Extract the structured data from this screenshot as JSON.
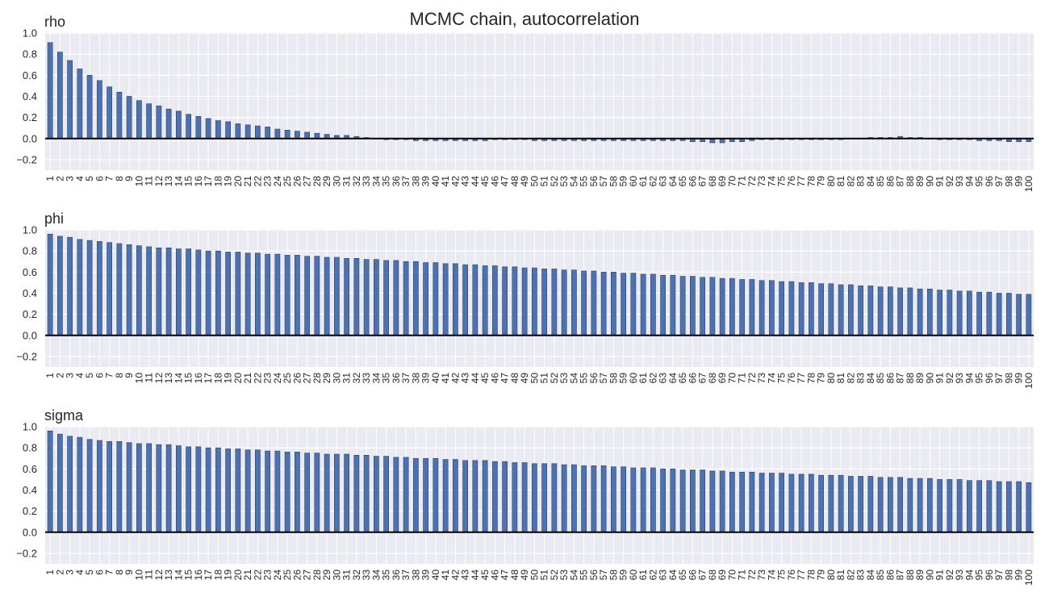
{
  "figure": {
    "title": "MCMC chain, autocorrelation"
  },
  "colors": {
    "bar": "#4c72b0",
    "bar_edge": "#2b3f66",
    "plot_background": "#eaeaf2",
    "grid": "#ffffff",
    "zero_line": "#000000"
  },
  "chart_data": [
    {
      "type": "bar",
      "title": "rho",
      "xlabel": "",
      "ylabel": "",
      "ylim": [
        -0.3,
        1.0
      ],
      "yticks": [
        -0.2,
        0.0,
        0.2,
        0.4,
        0.6,
        0.8,
        1.0
      ],
      "ytick_labels": [
        "−0.2",
        "0.0",
        "0.2",
        "0.4",
        "0.6",
        "0.8",
        "1.0"
      ],
      "grid": true,
      "categories": [
        "1",
        "2",
        "3",
        "4",
        "5",
        "6",
        "7",
        "8",
        "9",
        "10",
        "11",
        "12",
        "13",
        "14",
        "15",
        "16",
        "17",
        "18",
        "19",
        "20",
        "21",
        "22",
        "23",
        "24",
        "25",
        "26",
        "27",
        "28",
        "29",
        "30",
        "31",
        "32",
        "33",
        "34",
        "35",
        "36",
        "37",
        "38",
        "39",
        "40",
        "41",
        "42",
        "43",
        "44",
        "45",
        "46",
        "47",
        "48",
        "49",
        "50",
        "51",
        "52",
        "53",
        "54",
        "55",
        "56",
        "57",
        "58",
        "59",
        "60",
        "61",
        "62",
        "63",
        "64",
        "65",
        "66",
        "67",
        "68",
        "69",
        "70",
        "71",
        "72",
        "73",
        "74",
        "75",
        "76",
        "77",
        "78",
        "79",
        "80",
        "81",
        "82",
        "83",
        "84",
        "85",
        "86",
        "87",
        "88",
        "89",
        "90",
        "91",
        "92",
        "93",
        "94",
        "95",
        "96",
        "97",
        "98",
        "99",
        "100"
      ],
      "values": [
        0.91,
        0.82,
        0.74,
        0.66,
        0.6,
        0.55,
        0.49,
        0.44,
        0.4,
        0.36,
        0.33,
        0.31,
        0.28,
        0.26,
        0.23,
        0.21,
        0.19,
        0.17,
        0.16,
        0.14,
        0.13,
        0.12,
        0.11,
        0.09,
        0.08,
        0.07,
        0.06,
        0.05,
        0.04,
        0.03,
        0.03,
        0.02,
        0.01,
        0.0,
        -0.01,
        -0.01,
        -0.01,
        -0.02,
        -0.02,
        -0.02,
        -0.02,
        -0.02,
        -0.02,
        -0.02,
        -0.02,
        -0.01,
        -0.01,
        -0.01,
        -0.01,
        -0.02,
        -0.02,
        -0.02,
        -0.02,
        -0.02,
        -0.02,
        -0.02,
        -0.02,
        -0.02,
        -0.02,
        -0.02,
        -0.02,
        -0.02,
        -0.02,
        -0.02,
        -0.02,
        -0.03,
        -0.03,
        -0.04,
        -0.04,
        -0.03,
        -0.03,
        -0.02,
        -0.01,
        -0.01,
        -0.01,
        -0.01,
        -0.01,
        -0.01,
        -0.01,
        -0.01,
        -0.01,
        0.0,
        0.0,
        0.01,
        0.01,
        0.01,
        0.02,
        0.01,
        0.01,
        0.0,
        -0.01,
        -0.01,
        -0.01,
        -0.01,
        -0.02,
        -0.02,
        -0.02,
        -0.03,
        -0.03,
        -0.03
      ]
    },
    {
      "type": "bar",
      "title": "phi",
      "xlabel": "",
      "ylabel": "",
      "ylim": [
        -0.3,
        1.0
      ],
      "yticks": [
        -0.2,
        0.0,
        0.2,
        0.4,
        0.6,
        0.8,
        1.0
      ],
      "ytick_labels": [
        "−0.2",
        "0.0",
        "0.2",
        "0.4",
        "0.6",
        "0.8",
        "1.0"
      ],
      "grid": true,
      "categories": [
        "1",
        "2",
        "3",
        "4",
        "5",
        "6",
        "7",
        "8",
        "9",
        "10",
        "11",
        "12",
        "13",
        "14",
        "15",
        "16",
        "17",
        "18",
        "19",
        "20",
        "21",
        "22",
        "23",
        "24",
        "25",
        "26",
        "27",
        "28",
        "29",
        "30",
        "31",
        "32",
        "33",
        "34",
        "35",
        "36",
        "37",
        "38",
        "39",
        "40",
        "41",
        "42",
        "43",
        "44",
        "45",
        "46",
        "47",
        "48",
        "49",
        "50",
        "51",
        "52",
        "53",
        "54",
        "55",
        "56",
        "57",
        "58",
        "59",
        "60",
        "61",
        "62",
        "63",
        "64",
        "65",
        "66",
        "67",
        "68",
        "69",
        "70",
        "71",
        "72",
        "73",
        "74",
        "75",
        "76",
        "77",
        "78",
        "79",
        "80",
        "81",
        "82",
        "83",
        "84",
        "85",
        "86",
        "87",
        "88",
        "89",
        "90",
        "91",
        "92",
        "93",
        "94",
        "95",
        "96",
        "97",
        "98",
        "99",
        "100"
      ],
      "values": [
        0.96,
        0.94,
        0.93,
        0.91,
        0.9,
        0.89,
        0.88,
        0.87,
        0.86,
        0.85,
        0.84,
        0.83,
        0.83,
        0.82,
        0.82,
        0.81,
        0.8,
        0.8,
        0.79,
        0.79,
        0.78,
        0.78,
        0.77,
        0.77,
        0.76,
        0.76,
        0.75,
        0.75,
        0.74,
        0.74,
        0.73,
        0.73,
        0.72,
        0.72,
        0.71,
        0.71,
        0.7,
        0.7,
        0.69,
        0.69,
        0.68,
        0.68,
        0.67,
        0.67,
        0.66,
        0.66,
        0.65,
        0.65,
        0.64,
        0.64,
        0.63,
        0.63,
        0.62,
        0.62,
        0.61,
        0.61,
        0.6,
        0.6,
        0.59,
        0.59,
        0.58,
        0.58,
        0.57,
        0.57,
        0.56,
        0.56,
        0.55,
        0.55,
        0.54,
        0.54,
        0.53,
        0.53,
        0.52,
        0.52,
        0.51,
        0.51,
        0.5,
        0.5,
        0.49,
        0.49,
        0.48,
        0.48,
        0.47,
        0.47,
        0.46,
        0.46,
        0.45,
        0.45,
        0.44,
        0.44,
        0.43,
        0.43,
        0.42,
        0.42,
        0.41,
        0.41,
        0.4,
        0.4,
        0.39,
        0.39
      ]
    },
    {
      "type": "bar",
      "title": "sigma",
      "xlabel": "",
      "ylabel": "",
      "ylim": [
        -0.3,
        1.0
      ],
      "yticks": [
        -0.2,
        0.0,
        0.2,
        0.4,
        0.6,
        0.8,
        1.0
      ],
      "ytick_labels": [
        "−0.2",
        "0.0",
        "0.2",
        "0.4",
        "0.6",
        "0.8",
        "1.0"
      ],
      "grid": true,
      "categories": [
        "1",
        "2",
        "3",
        "4",
        "5",
        "6",
        "7",
        "8",
        "9",
        "10",
        "11",
        "12",
        "13",
        "14",
        "15",
        "16",
        "17",
        "18",
        "19",
        "20",
        "21",
        "22",
        "23",
        "24",
        "25",
        "26",
        "27",
        "28",
        "29",
        "30",
        "31",
        "32",
        "33",
        "34",
        "35",
        "36",
        "37",
        "38",
        "39",
        "40",
        "41",
        "42",
        "43",
        "44",
        "45",
        "46",
        "47",
        "48",
        "49",
        "50",
        "51",
        "52",
        "53",
        "54",
        "55",
        "56",
        "57",
        "58",
        "59",
        "60",
        "61",
        "62",
        "63",
        "64",
        "65",
        "66",
        "67",
        "68",
        "69",
        "70",
        "71",
        "72",
        "73",
        "74",
        "75",
        "76",
        "77",
        "78",
        "79",
        "80",
        "81",
        "82",
        "83",
        "84",
        "85",
        "86",
        "87",
        "88",
        "89",
        "90",
        "91",
        "92",
        "93",
        "94",
        "95",
        "96",
        "97",
        "98",
        "99",
        "100"
      ],
      "values": [
        0.96,
        0.93,
        0.91,
        0.9,
        0.88,
        0.87,
        0.86,
        0.86,
        0.85,
        0.84,
        0.84,
        0.83,
        0.83,
        0.82,
        0.81,
        0.81,
        0.8,
        0.8,
        0.79,
        0.79,
        0.78,
        0.78,
        0.77,
        0.77,
        0.76,
        0.76,
        0.75,
        0.75,
        0.74,
        0.74,
        0.74,
        0.73,
        0.73,
        0.72,
        0.72,
        0.71,
        0.71,
        0.7,
        0.7,
        0.7,
        0.69,
        0.69,
        0.68,
        0.68,
        0.68,
        0.67,
        0.67,
        0.66,
        0.66,
        0.65,
        0.65,
        0.65,
        0.64,
        0.64,
        0.63,
        0.63,
        0.63,
        0.62,
        0.62,
        0.61,
        0.61,
        0.61,
        0.6,
        0.6,
        0.59,
        0.59,
        0.59,
        0.58,
        0.58,
        0.57,
        0.57,
        0.57,
        0.56,
        0.56,
        0.56,
        0.55,
        0.55,
        0.55,
        0.54,
        0.54,
        0.54,
        0.53,
        0.53,
        0.53,
        0.52,
        0.52,
        0.52,
        0.51,
        0.51,
        0.51,
        0.5,
        0.5,
        0.5,
        0.49,
        0.49,
        0.49,
        0.48,
        0.48,
        0.48,
        0.47
      ]
    }
  ]
}
